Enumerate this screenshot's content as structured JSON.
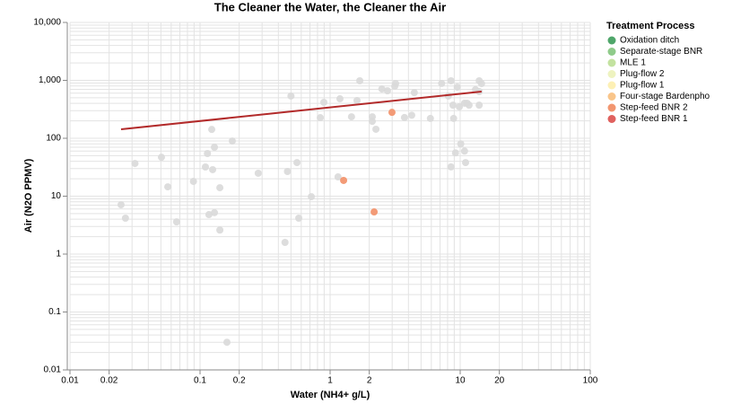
{
  "chart_data": {
    "type": "scatter",
    "title": "The Cleaner the Water, the Cleaner the Air",
    "x_label": "Water (NH4+ g/L)",
    "y_label": "Air (N2O PPMV)",
    "log_x": true,
    "log_y": true,
    "grid": true,
    "xlim": [
      0.01,
      100
    ],
    "ylim": [
      0.01,
      10000
    ],
    "xticks": [
      0.01,
      0.02,
      0.1,
      0.2,
      1,
      2,
      10,
      20,
      100
    ],
    "yticks": [
      0.01,
      0.1,
      1,
      10,
      100,
      {
        "value": 1000,
        "label": "1,000"
      },
      {
        "value": 10000,
        "label": "10,000"
      }
    ],
    "x_minor_grid": [
      0.01,
      0.02,
      0.03,
      0.04,
      0.05,
      0.06,
      0.07,
      0.08,
      0.09,
      0.1,
      0.2,
      0.3,
      0.4,
      0.5,
      0.6,
      0.7,
      0.8,
      0.9,
      1,
      2,
      3,
      4,
      5,
      6,
      7,
      8,
      9,
      10,
      20,
      30,
      40,
      50,
      60,
      70,
      80,
      90,
      100
    ],
    "y_minor_grid": [
      0.01,
      0.02,
      0.03,
      0.04,
      0.05,
      0.06,
      0.07,
      0.08,
      0.09,
      0.1,
      0.2,
      0.3,
      0.4,
      0.5,
      0.6,
      0.7,
      0.8,
      0.9,
      1,
      2,
      3,
      4,
      5,
      6,
      7,
      8,
      9,
      10,
      20,
      30,
      40,
      50,
      60,
      70,
      80,
      90,
      100,
      200,
      300,
      400,
      500,
      600,
      700,
      800,
      900,
      1000,
      2000,
      3000,
      4000,
      5000,
      6000,
      7000,
      8000,
      9000,
      10000
    ],
    "legend_title": "Treatment Process",
    "legend_position": "right",
    "series": [
      {
        "name": "Oxidation ditch",
        "color": "#4fa66a",
        "x": [],
        "values": []
      },
      {
        "name": "Separate-stage BNR",
        "color": "#8fcb8a",
        "x": [],
        "values": []
      },
      {
        "name": "MLE 1",
        "color": "#c3e2a0",
        "x": [],
        "values": []
      },
      {
        "name": "Plug-flow 2",
        "color": "#eef3c0",
        "x": [],
        "values": []
      },
      {
        "name": "Plug-flow 1",
        "color": "#fdf0b5",
        "x": [],
        "values": []
      },
      {
        "name": "Four-stage Bardenpho",
        "color": "#f9c58a",
        "x": [],
        "values": []
      },
      {
        "name": "Step-feed BNR 2",
        "color": "#f29670",
        "x": [
          1.27,
          2.99,
          2.18
        ],
        "values": [
          18.7,
          280,
          5.35
        ]
      },
      {
        "name": "Step-feed BNR 1",
        "color": "#e0615e",
        "x": [],
        "values": []
      }
    ],
    "other_points": {
      "color": "#d9d9d9",
      "x": [
        0.0247,
        0.0267,
        0.0316,
        0.0505,
        0.0565,
        0.066,
        0.089,
        0.11,
        0.114,
        0.117,
        0.123,
        0.125,
        0.129,
        0.129,
        0.142,
        0.142,
        0.161,
        0.177,
        0.28,
        0.45,
        0.47,
        0.5,
        0.556,
        0.574,
        0.717,
        0.84,
        0.895,
        1.15,
        1.19,
        1.46,
        1.61,
        1.69,
        2.11,
        2.11,
        2.25,
        2.5,
        2.76,
        3.14,
        3.19,
        3.73,
        4.24,
        4.44,
        5.9,
        7.2,
        8.1,
        8.5,
        8.8,
        8.5,
        8.9,
        9.2,
        9.5,
        9.85,
        10.1,
        10.8,
        10.8,
        11.0,
        11.3,
        11.7,
        13.1,
        14.0,
        14.0,
        14.6,
        14.0
      ],
      "values": [
        7.1,
        4.17,
        36.7,
        47,
        14.5,
        3.6,
        18,
        31.9,
        54.5,
        4.8,
        142,
        28.7,
        5.2,
        70,
        14,
        2.6,
        0.03,
        89.5,
        24.9,
        1.59,
        26.7,
        536,
        38,
        4.17,
        9.8,
        227,
        417,
        21.5,
        480,
        235,
        448,
        982,
        196,
        235,
        143,
        710,
        660,
        790,
        880,
        228,
        250,
        615,
        220,
        885,
        536,
        982,
        373,
        32,
        220,
        56,
        763,
        350,
        80,
        403,
        60,
        38,
        403,
        373,
        690,
        982,
        373,
        880,
        640
      ]
    },
    "trendline": {
      "color": "#b22a2a",
      "x": [
        0.0247,
        14.6
      ],
      "values": [
        143,
        640
      ]
    }
  }
}
